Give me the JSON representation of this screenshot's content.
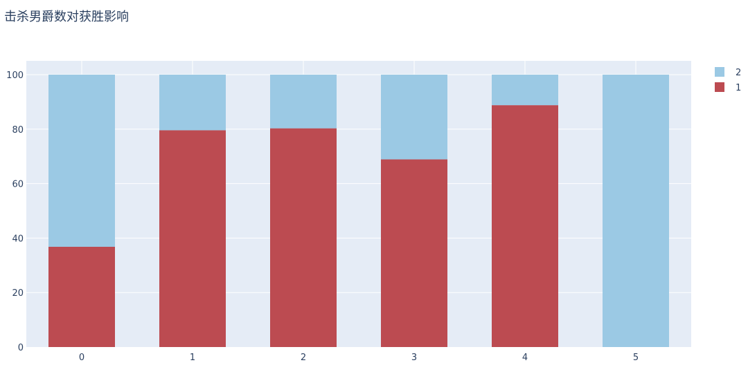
{
  "chart_data": {
    "type": "bar",
    "barmode": "stack",
    "title": "击杀男爵数对获胜影响",
    "xlabel": "",
    "ylabel": "",
    "categories": [
      "0",
      "1",
      "2",
      "3",
      "4",
      "5"
    ],
    "ylim": [
      0,
      100
    ],
    "yticks": [
      0,
      20,
      40,
      60,
      80,
      100
    ],
    "grid": true,
    "legend_position": "top-right",
    "series": [
      {
        "name": "1",
        "color": "#bc4b51",
        "values": [
          36.8,
          79.6,
          80.3,
          68.9,
          88.8,
          0
        ]
      },
      {
        "name": "2",
        "color": "#9bc9e4",
        "values": [
          63.2,
          20.4,
          19.7,
          31.1,
          11.2,
          100
        ]
      }
    ],
    "legend_order": [
      "2",
      "1"
    ]
  },
  "colors": {
    "plot_background": "#e5ecf6",
    "grid": "#ffffff",
    "text": "#2a3f5f"
  }
}
